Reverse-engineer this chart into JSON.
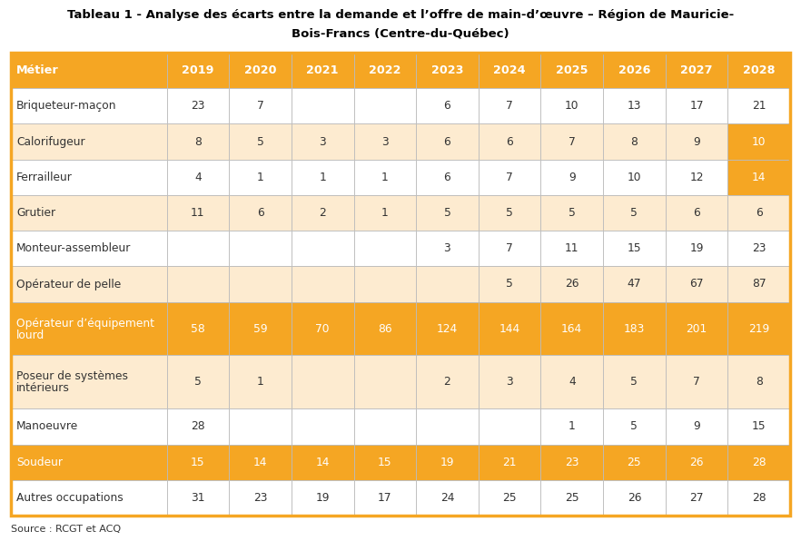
{
  "title_line1": "Tableau 1 - Analyse des écarts entre la demande et l’offre de main-d’œuvre – Région de Mauricie-",
  "title_line2": "Bois-Francs (Centre-du-Québec)",
  "source": "Source : RCGT et ACQ",
  "columns": [
    "Métier",
    "2019",
    "2020",
    "2021",
    "2022",
    "2023",
    "2024",
    "2025",
    "2026",
    "2027",
    "2028"
  ],
  "rows": [
    {
      "label": "Briqueteur-maçon",
      "label2": "",
      "values": [
        "23",
        "7",
        "",
        "",
        "6",
        "7",
        "10",
        "13",
        "17",
        "21"
      ],
      "highlight": [],
      "tall": false
    },
    {
      "label": "Calorifugeur",
      "label2": "",
      "values": [
        "8",
        "5",
        "3",
        "3",
        "6",
        "6",
        "7",
        "8",
        "9",
        "10"
      ],
      "highlight": [
        9
      ],
      "tall": false
    },
    {
      "label": "Ferrailleur",
      "label2": "",
      "values": [
        "4",
        "1",
        "1",
        "1",
        "6",
        "7",
        "9",
        "10",
        "12",
        "14"
      ],
      "highlight": [
        9
      ],
      "tall": false
    },
    {
      "label": "Grutier",
      "label2": "",
      "values": [
        "11",
        "6",
        "2",
        "1",
        "5",
        "5",
        "5",
        "5",
        "6",
        "6"
      ],
      "highlight": [],
      "tall": false
    },
    {
      "label": "Monteur-assembleur",
      "label2": "",
      "values": [
        "",
        "",
        "",
        "",
        "3",
        "7",
        "11",
        "15",
        "19",
        "23"
      ],
      "highlight": [],
      "tall": false
    },
    {
      "label": "Opérateur de pelle",
      "label2": "",
      "values": [
        "",
        "",
        "",
        "",
        "",
        "5",
        "26",
        "47",
        "67",
        "87"
      ],
      "highlight": [],
      "tall": false
    },
    {
      "label": "Opérateur d’équipement",
      "label2": "lourd",
      "values": [
        "58",
        "59",
        "70",
        "86",
        "124",
        "144",
        "164",
        "183",
        "201",
        "219"
      ],
      "highlight": [
        0,
        1,
        2,
        3,
        4,
        5,
        6,
        7,
        8,
        9
      ],
      "tall": true
    },
    {
      "label": "Poseur de systèmes",
      "label2": "intérieurs",
      "values": [
        "5",
        "1",
        "",
        "",
        "2",
        "3",
        "4",
        "5",
        "7",
        "8"
      ],
      "highlight": [],
      "tall": true
    },
    {
      "label": "Manoeuvre",
      "label2": "",
      "values": [
        "28",
        "",
        "",
        "",
        "",
        "",
        "1",
        "5",
        "9",
        "15"
      ],
      "highlight": [],
      "tall": false
    },
    {
      "label": "Soudeur",
      "label2": "",
      "values": [
        "15",
        "14",
        "14",
        "15",
        "19",
        "21",
        "23",
        "25",
        "26",
        "28"
      ],
      "highlight": [
        0,
        1,
        2,
        3,
        4,
        5,
        6,
        7,
        8,
        9
      ],
      "tall": false
    },
    {
      "label": "Autres occupations",
      "label2": "",
      "values": [
        "31",
        "23",
        "19",
        "17",
        "24",
        "25",
        "25",
        "26",
        "27",
        "28"
      ],
      "highlight": [],
      "tall": false
    }
  ],
  "header_bg": "#F5A623",
  "header_text": "#FFFFFF",
  "highlight_bg": "#F5A623",
  "highlight_text": "#FFFFFF",
  "row_bg_odd": "#FFFFFF",
  "row_bg_even": "#FDEBD0",
  "cell_text_color": "#333333",
  "border_color": "#CCCCCC",
  "outer_border_color": "#F5A623",
  "title_color": "#000000",
  "source_color": "#333333",
  "col_widths_rel": [
    2.5,
    1.0,
    1.0,
    1.0,
    1.0,
    1.0,
    1.0,
    1.0,
    1.0,
    1.0,
    1.0
  ],
  "row_heights_rel": [
    1.0,
    1.0,
    1.0,
    1.0,
    1.0,
    1.0,
    1.0,
    1.5,
    1.5,
    1.0,
    1.0,
    1.0
  ],
  "fig_width": 8.82,
  "fig_height": 5.96,
  "dpi": 100
}
